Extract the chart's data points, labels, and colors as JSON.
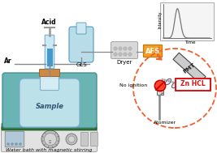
{
  "bg_color": "#ffffff",
  "bottom_text": "Water bath with magnetic stirring",
  "labels": {
    "acid": "Acid",
    "ar": "Ar",
    "gls": "GLS",
    "dryer": "Dryer",
    "afs": "AFS",
    "sample": "Sample",
    "no_ignition": "No ignition",
    "atomizer": "Atomizer",
    "zn_hcl": "Zn HCL",
    "pmt": "PMT",
    "intensity": "Intensity",
    "time": "Time"
  },
  "colors": {
    "syringe_body": "#cce8f4",
    "syringe_liquid": "#4499cc",
    "syringe_plunger": "#aaaaaa",
    "gls_body": "#b8dde8",
    "gls_neck": "#cce8f0",
    "dryer_fill": "#d8d8d8",
    "dryer_dot": "#aaaaaa",
    "afs_box": "#f5a020",
    "afs_text": "#ffffff",
    "water_fill": "#6ab4b4",
    "water_edge": "#3d8888",
    "green_platform": "#2e6e2e",
    "stirrer_body": "#e2e2e2",
    "stirrer_edge": "#999999",
    "screen_fill": "#b0c8d8",
    "flask_body": "#c8e8f0",
    "flask_edge": "#7aaccc",
    "cork_fill": "#cc8844",
    "cork_edge": "#996633",
    "tube_color": "#888888",
    "dashed_circle": "#f06030",
    "pmt_fill": "#cccccc",
    "pmt_edge": "#444444",
    "lens_fill": "#e8e8ff",
    "zn_hcl_text": "#dd1111",
    "zn_hcl_edge": "#dd1111",
    "no_ign_red": "#cc0000",
    "arrow_color": "#f06030",
    "graph_bg": "#f5f5f5",
    "graph_edge": "#aaaaaa",
    "graph_line": "#777777",
    "bottom_text_color": "#111111"
  }
}
